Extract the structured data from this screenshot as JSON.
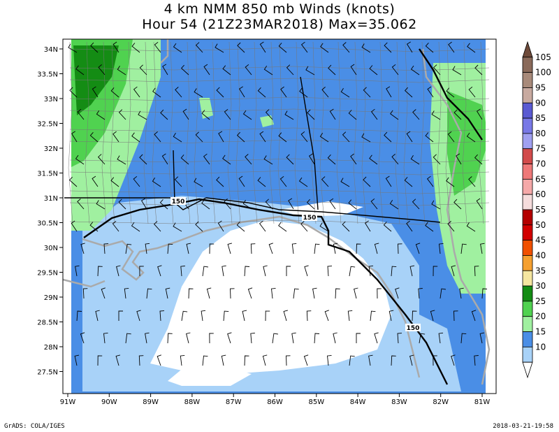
{
  "title": {
    "line1": "4 km NMM 850 mb Winds (knots)",
    "line2": "Hour 54 (21Z23MAR2018) Max=35.062"
  },
  "map": {
    "lon_labels": [
      "91W",
      "90W",
      "89W",
      "88W",
      "87W",
      "86W",
      "85W",
      "84W",
      "83W",
      "82W",
      "81W"
    ],
    "lat_labels": [
      "34N",
      "33.5N",
      "33N",
      "32.5N",
      "32N",
      "31.5N",
      "31N",
      "30.5N",
      "30N",
      "29.5N",
      "29N",
      "28.5N",
      "28N",
      "27.5N"
    ],
    "road_labels": [
      "150",
      "150",
      "150"
    ]
  },
  "colorbar": {
    "levels": [
      "105",
      "100",
      "95",
      "90",
      "85",
      "80",
      "75",
      "70",
      "65",
      "60",
      "55",
      "50",
      "45",
      "40",
      "35",
      "30",
      "25",
      "20",
      "15",
      "10"
    ],
    "colors": [
      "#6e4a3a",
      "#8a6a5a",
      "#a88a7a",
      "#c8aaa0",
      "#5a5ad2",
      "#7878e6",
      "#a0a0f0",
      "#d24b4b",
      "#ee7878",
      "#f5a8a8",
      "#f5dcdc",
      "#b40000",
      "#d20000",
      "#f05000",
      "#f5a030",
      "#f5e6a0",
      "#148c14",
      "#50d250",
      "#a0f0a0",
      "#4a8ee6",
      "#a8d2f8",
      "#ffffff"
    ]
  },
  "footer": {
    "left": "GrADS: COLA/IGES",
    "right": "2018-03-21-19:58"
  }
}
